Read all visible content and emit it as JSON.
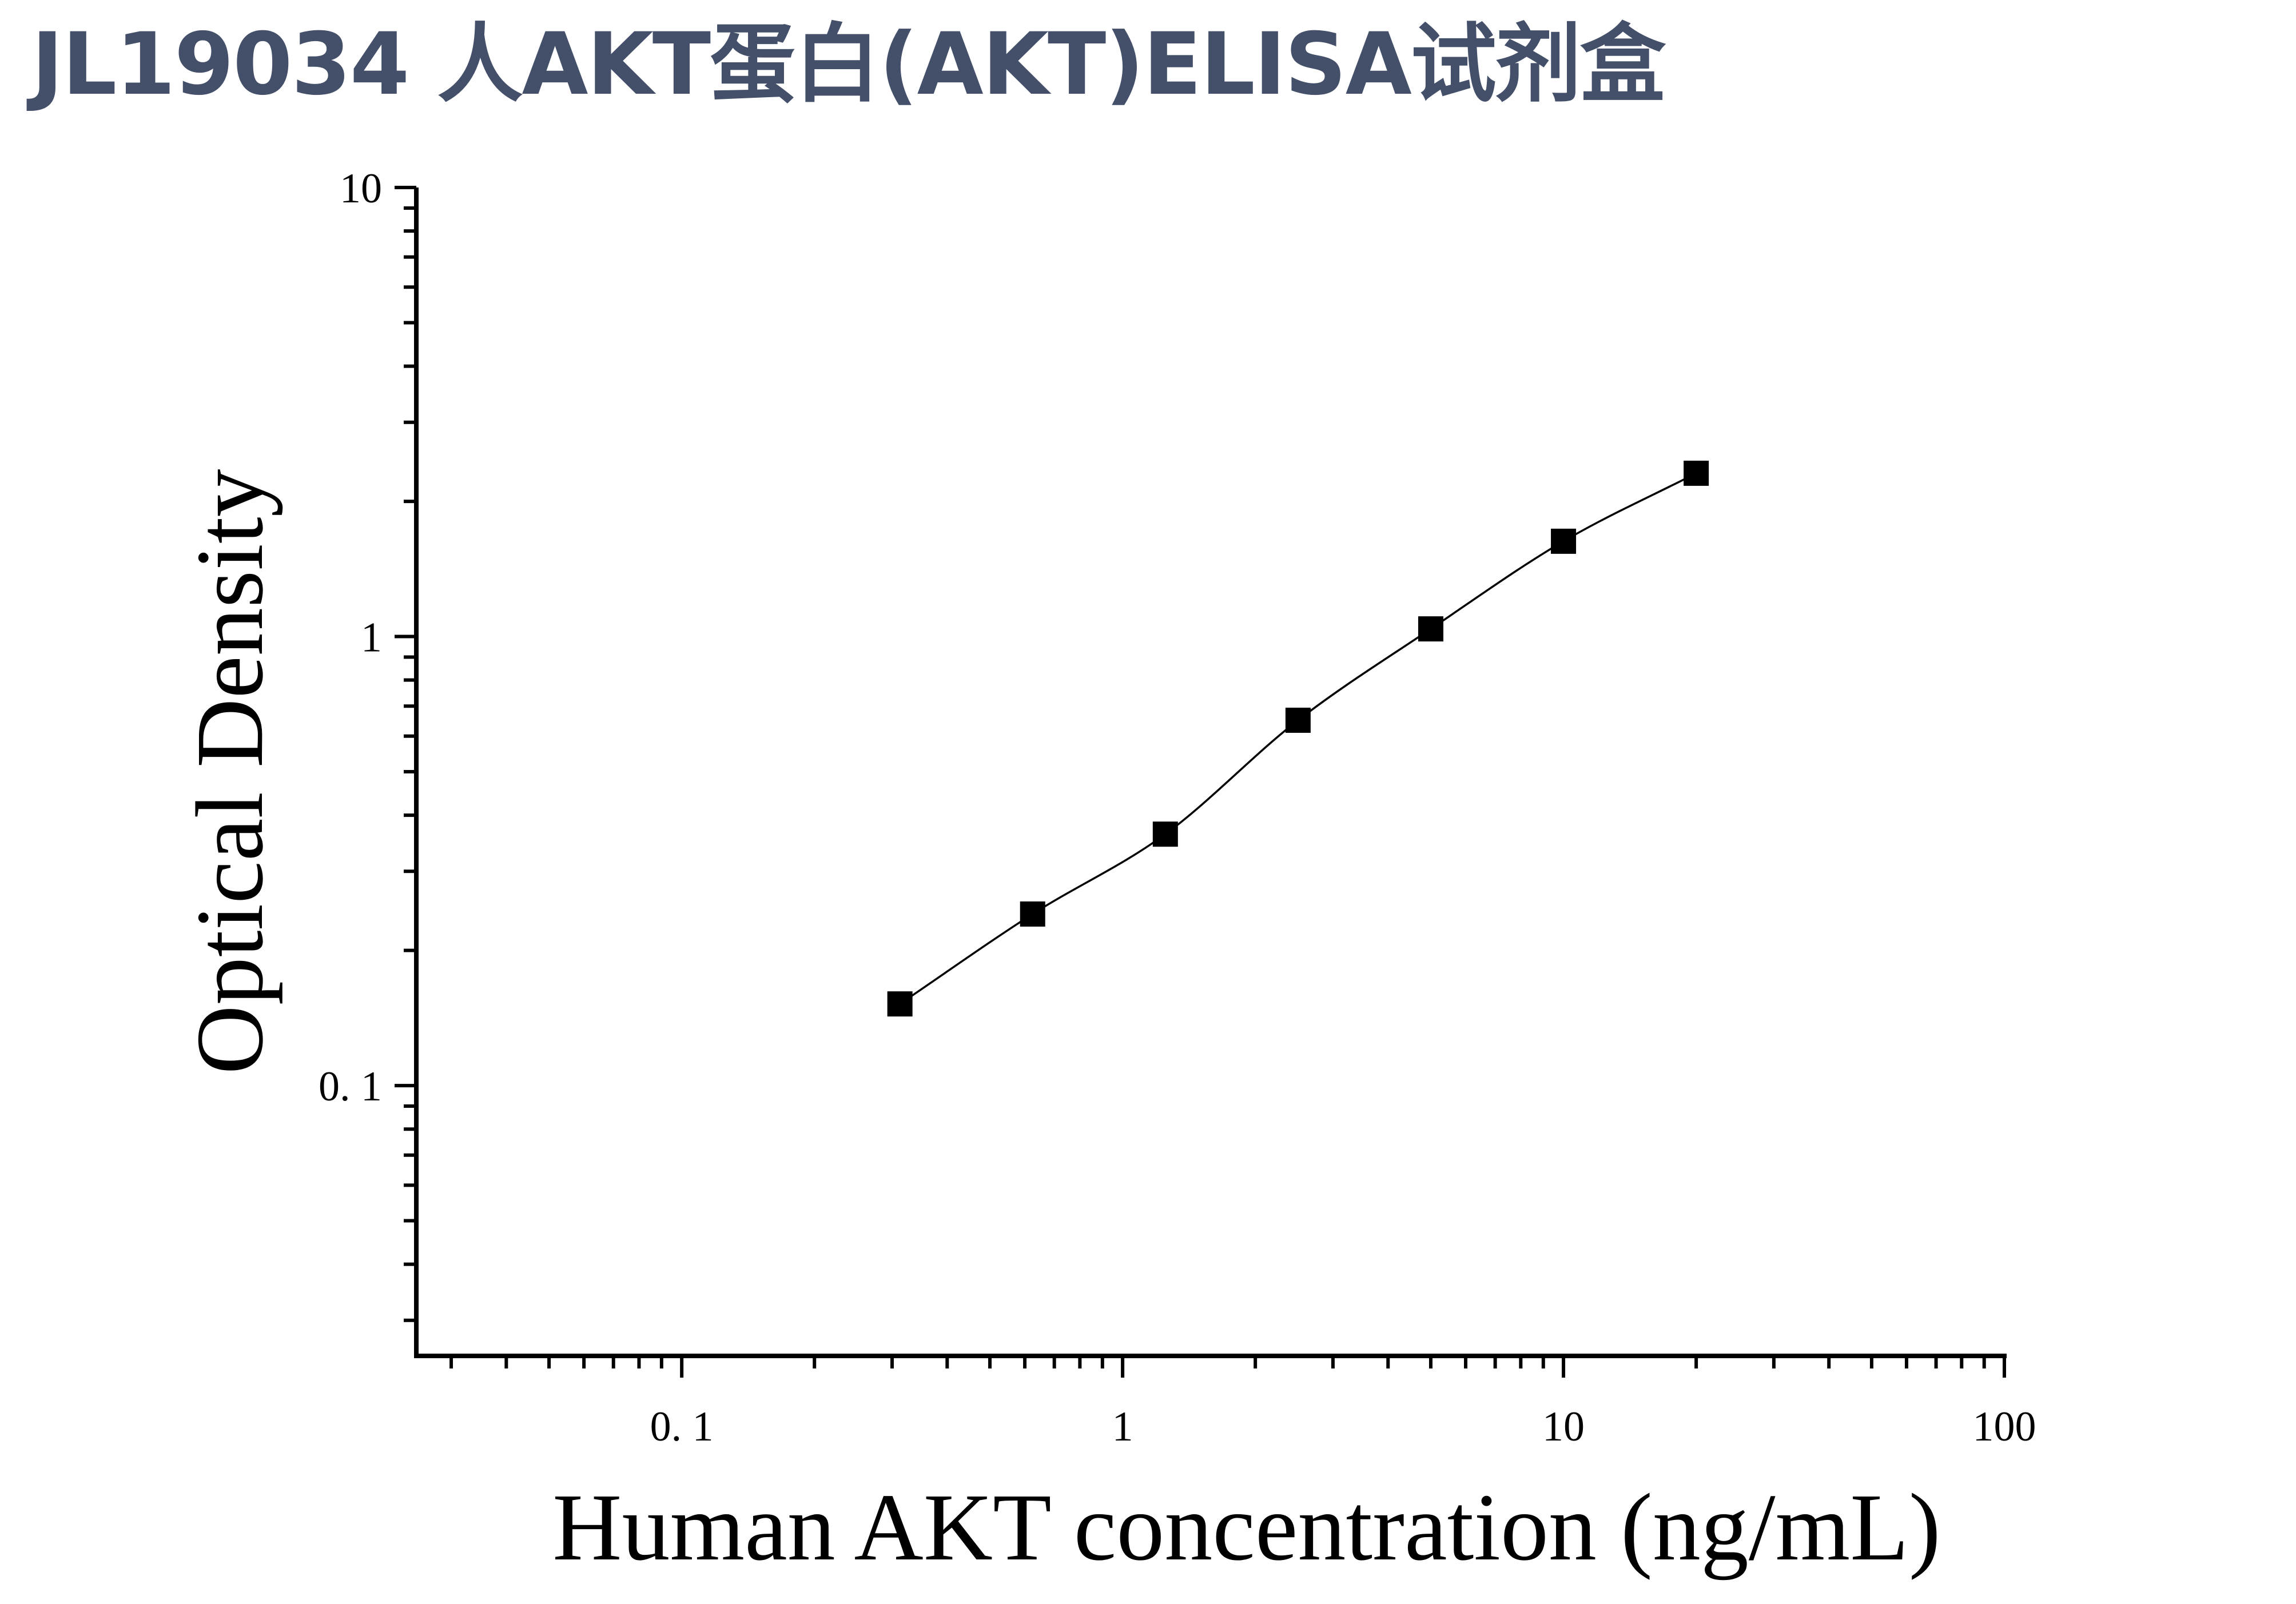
{
  "title": "JL19034 人AKT蛋白(AKT)ELISA试剂盒",
  "colors": {
    "title": "#44506a",
    "axis": "#000000",
    "marker": "#000000",
    "curve": "#000000"
  },
  "chart_data": {
    "type": "scatter",
    "xlabel": "Human AKT concentration (ng/mL)",
    "ylabel": "Optical Density",
    "xscale": "log",
    "yscale": "log",
    "xlim": [
      0.025,
      100
    ],
    "ylim": [
      0.025,
      10
    ],
    "x_tick_labels": [
      "0. 1",
      "1",
      "10",
      "100"
    ],
    "y_tick_labels": [
      "0. 1",
      "1",
      "10"
    ],
    "grid": false,
    "legend": "none",
    "marker": "square",
    "fit_curve": true,
    "series": [
      {
        "x": [
          0.3125,
          0.625,
          1.25,
          2.5,
          5,
          10,
          20
        ],
        "y": [
          0.152,
          0.241,
          0.363,
          0.651,
          1.04,
          1.63,
          2.31
        ]
      }
    ]
  }
}
